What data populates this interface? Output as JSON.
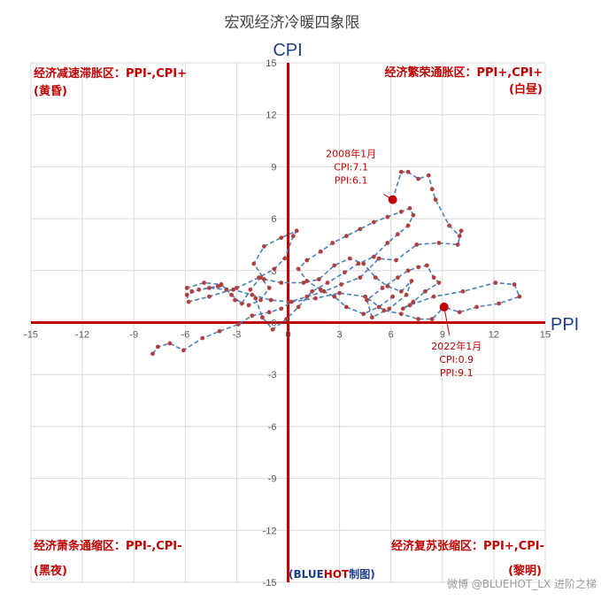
{
  "chart_data": {
    "type": "line",
    "title": "宏观经济冷暖四象限",
    "xlabel": "PPI",
    "ylabel": "CPI",
    "xlim": [
      -15,
      15
    ],
    "ylim": [
      -15,
      15
    ],
    "xticks": [
      -15,
      -12,
      -9,
      -6,
      -3,
      0,
      3,
      6,
      9,
      12,
      15
    ],
    "yticks": [
      15,
      12,
      9,
      6,
      3,
      0,
      -3,
      -6,
      -9,
      -12,
      -15
    ],
    "grid": true,
    "colors": {
      "line": "#4a7fb8",
      "marker": "#b04040",
      "axis": "#c00000",
      "quadrant_text": "#c00000",
      "credit_blue": "#1f3e8a"
    },
    "quadrants": {
      "top_left": {
        "line1": "经济减速滞胀区：PPI-,CPI+",
        "line2": "(黄昏)"
      },
      "top_right": {
        "line1": "经济繁荣通胀区：PPI+,CPI+",
        "line2": "(白昼)"
      },
      "bottom_left": {
        "line1": "经济萧条通缩区：PPI-,CPI-",
        "line2": "(黑夜)"
      },
      "bottom_right": {
        "line1": "经济复苏张缩区：PPI+,CPI-",
        "line2": "(黎明)"
      }
    },
    "annotations": [
      {
        "lines": [
          "2008年1月",
          "CPI:7.1",
          "PPI:6.1"
        ],
        "x": 6.1,
        "y": 7.1
      },
      {
        "lines": [
          "2022年1月",
          "CPI:0.9",
          "PPI:9.1"
        ],
        "x": 9.1,
        "y": 0.9
      }
    ],
    "series": [
      {
        "points": [
          [
            6.1,
            7.1
          ],
          [
            6.6,
            8.7
          ],
          [
            7.0,
            8.7
          ],
          [
            7.6,
            8.3
          ],
          [
            8.2,
            8.5
          ],
          [
            8.4,
            7.7
          ],
          [
            8.6,
            7.1
          ],
          [
            9.4,
            5.6
          ],
          [
            10.0,
            5.0
          ],
          [
            10.1,
            5.3
          ],
          [
            9.9,
            4.5
          ],
          [
            8.8,
            4.6
          ],
          [
            7.5,
            4.5
          ],
          [
            6.3,
            3.6
          ],
          [
            5.3,
            3.7
          ],
          [
            4.2,
            2.6
          ],
          [
            3.1,
            2.2
          ],
          [
            2.1,
            1.8
          ],
          [
            1.1,
            1.5
          ],
          [
            0.1,
            1.2
          ],
          [
            -1.0,
            1.3
          ],
          [
            -2.1,
            1.6
          ],
          [
            -3.2,
            1.9
          ],
          [
            -4.1,
            2.1
          ],
          [
            -5.2,
            1.9
          ],
          [
            -5.9,
            1.6
          ],
          [
            -5.8,
            1.2
          ],
          [
            -4.6,
            1.5
          ],
          [
            -3.0,
            2.0
          ],
          [
            -1.7,
            2.6
          ],
          [
            -0.8,
            3.1
          ],
          [
            -0.2,
            3.7
          ],
          [
            0.3,
            5.0
          ],
          [
            0.5,
            5.3
          ],
          [
            -0.4,
            4.9
          ],
          [
            -1.4,
            4.4
          ],
          [
            -2.0,
            3.4
          ],
          [
            -1.4,
            2.5
          ],
          [
            -0.4,
            2.3
          ],
          [
            0.9,
            2.3
          ],
          [
            1.8,
            2.5
          ],
          [
            2.7,
            3.3
          ],
          [
            3.6,
            3.7
          ],
          [
            4.4,
            3.4
          ],
          [
            5.1,
            2.6
          ],
          [
            5.8,
            2.1
          ],
          [
            6.6,
            1.8
          ],
          [
            7.2,
            2.4
          ],
          [
            6.9,
            1.6
          ],
          [
            5.9,
            0.8
          ],
          [
            4.9,
            0.3
          ],
          [
            4.6,
            1.3
          ],
          [
            5.5,
            2.0
          ],
          [
            6.4,
            2.6
          ],
          [
            7.0,
            3.0
          ],
          [
            7.6,
            3.2
          ],
          [
            8.1,
            3.3
          ],
          [
            8.5,
            2.6
          ],
          [
            8.8,
            2.3
          ],
          [
            8.0,
            1.8
          ],
          [
            7.3,
            1.2
          ],
          [
            6.7,
            0.8
          ],
          [
            7.1,
            1.0
          ],
          [
            8.5,
            1.5
          ],
          [
            10.2,
            1.8
          ],
          [
            12.1,
            2.3
          ],
          [
            13.2,
            2.2
          ],
          [
            13.5,
            1.5
          ],
          [
            12.3,
            1.1
          ],
          [
            11.0,
            0.9
          ],
          [
            10.0,
            0.6
          ],
          [
            9.1,
            0.9
          ]
        ]
      },
      {
        "points": [
          [
            -7.9,
            -1.8
          ],
          [
            -7.6,
            -1.4
          ],
          [
            -6.9,
            -1.2
          ],
          [
            -6.1,
            -1.6
          ],
          [
            -5.0,
            -0.9
          ],
          [
            -4.0,
            -0.5
          ],
          [
            -2.9,
            -0.1
          ],
          [
            -2.1,
            0.4
          ],
          [
            -1.1,
            0.6
          ],
          [
            -0.4,
            0.8
          ],
          [
            0.2,
            1.2
          ],
          [
            1.6,
            1.4
          ],
          [
            3.0,
            1.7
          ],
          [
            4.5,
            1.5
          ],
          [
            5.6,
            0.7
          ],
          [
            6.6,
            0.5
          ],
          [
            7.6,
            0.2
          ],
          [
            8.4,
            0.2
          ],
          [
            9.1,
            0.9
          ]
        ]
      },
      {
        "points": [
          [
            -1.9,
            1.4
          ],
          [
            -1.5,
            0.3
          ],
          [
            -0.9,
            -0.4
          ],
          [
            -0.1,
            0.2
          ],
          [
            0.6,
            0.9
          ],
          [
            1.4,
            1.8
          ],
          [
            2.3,
            2.3
          ],
          [
            3.3,
            2.9
          ],
          [
            4.1,
            3.4
          ],
          [
            5.0,
            3.8
          ],
          [
            5.8,
            4.6
          ],
          [
            6.4,
            5.1
          ],
          [
            7.0,
            5.6
          ],
          [
            7.3,
            6.2
          ],
          [
            7.1,
            6.6
          ],
          [
            6.6,
            6.4
          ],
          [
            5.8,
            6.1
          ],
          [
            5.0,
            5.8
          ],
          [
            4.2,
            5.4
          ],
          [
            3.4,
            5.0
          ],
          [
            2.6,
            4.6
          ],
          [
            1.9,
            4.1
          ],
          [
            1.1,
            3.6
          ],
          [
            0.6,
            3.1
          ],
          [
            1.1,
            2.4
          ],
          [
            1.9,
            1.9
          ],
          [
            2.7,
            1.5
          ],
          [
            3.4,
            0.9
          ],
          [
            4.4,
            0.5
          ],
          [
            5.3,
            0.9
          ],
          [
            6.1,
            1.5
          ]
        ]
      },
      {
        "points": [
          [
            -3.9,
            2.2
          ],
          [
            -3.3,
            1.6
          ],
          [
            -2.7,
            1.1
          ],
          [
            -2.2,
            1.9
          ],
          [
            -1.6,
            2.6
          ],
          [
            -1.1,
            2.0
          ],
          [
            -1.6,
            1.3
          ],
          [
            -2.3,
            1.0
          ],
          [
            -3.1,
            1.3
          ],
          [
            -3.6,
            1.9
          ],
          [
            -4.6,
            2.0
          ],
          [
            -5.6,
            1.8
          ],
          [
            -5.9,
            2.0
          ],
          [
            -4.9,
            2.3
          ],
          [
            -3.9,
            2.2
          ]
        ]
      }
    ]
  },
  "credit": {
    "prefix": "(",
    "blue": "BLUE",
    "red": "HOT",
    "suffix": "制图)"
  },
  "watermark": "微博 @BLUEHOT_LX 进阶之梯"
}
